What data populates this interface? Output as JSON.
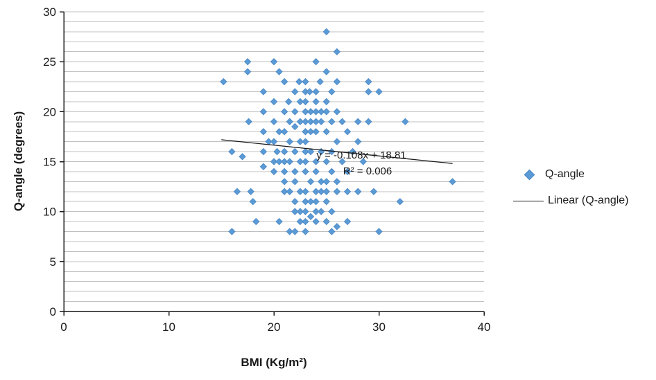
{
  "chart_data": {
    "type": "scatter",
    "title": "",
    "xlabel": "BMI (Kg/m²)",
    "ylabel": "Q-angle (degrees)",
    "xlim": [
      0,
      40
    ],
    "ylim": [
      0,
      30
    ],
    "x_ticks": [
      0,
      10,
      20,
      30,
      40
    ],
    "y_ticks": [
      0,
      5,
      10,
      15,
      20,
      25,
      30
    ],
    "y_minor_grid_step": 1,
    "grid": "horizontal-minor-gridlines",
    "legend_position": "right",
    "series": [
      {
        "name": "Q-angle",
        "marker": "diamond",
        "color": "#5b9bd5",
        "points": [
          [
            15.2,
            23
          ],
          [
            16,
            16
          ],
          [
            16,
            8
          ],
          [
            16.5,
            12
          ],
          [
            17,
            15.5
          ],
          [
            17.5,
            25
          ],
          [
            17.5,
            24
          ],
          [
            17.6,
            19
          ],
          [
            17.8,
            12
          ],
          [
            18,
            11
          ],
          [
            18.3,
            9
          ],
          [
            19,
            22
          ],
          [
            19,
            20
          ],
          [
            19,
            18
          ],
          [
            19,
            16
          ],
          [
            19,
            14.5
          ],
          [
            19.5,
            17
          ],
          [
            20,
            25
          ],
          [
            20,
            21
          ],
          [
            20,
            19
          ],
          [
            20,
            17
          ],
          [
            20,
            15
          ],
          [
            20,
            14
          ],
          [
            20.3,
            16
          ],
          [
            20.5,
            24
          ],
          [
            20.5,
            18
          ],
          [
            20.5,
            15
          ],
          [
            20.5,
            9
          ],
          [
            21,
            23
          ],
          [
            21,
            20
          ],
          [
            21,
            18
          ],
          [
            21,
            16
          ],
          [
            21,
            15
          ],
          [
            21,
            14
          ],
          [
            21,
            13
          ],
          [
            21,
            12
          ],
          [
            21.4,
            21
          ],
          [
            21.5,
            19
          ],
          [
            21.5,
            17
          ],
          [
            21.5,
            15
          ],
          [
            21.5,
            12
          ],
          [
            21.5,
            8
          ],
          [
            22,
            22
          ],
          [
            22,
            20
          ],
          [
            22,
            18.5
          ],
          [
            22,
            16
          ],
          [
            22,
            14
          ],
          [
            22,
            13
          ],
          [
            22,
            11
          ],
          [
            22,
            10
          ],
          [
            22,
            8
          ],
          [
            22.4,
            23
          ],
          [
            22.5,
            21
          ],
          [
            22.5,
            19
          ],
          [
            22.5,
            17
          ],
          [
            22.5,
            15
          ],
          [
            22.5,
            12
          ],
          [
            22.5,
            10
          ],
          [
            22.5,
            9
          ],
          [
            23,
            23
          ],
          [
            23,
            22
          ],
          [
            23,
            21
          ],
          [
            23,
            20
          ],
          [
            23,
            19
          ],
          [
            23,
            18
          ],
          [
            23,
            17
          ],
          [
            23,
            16
          ],
          [
            23,
            15
          ],
          [
            23,
            14
          ],
          [
            23,
            12
          ],
          [
            23,
            11
          ],
          [
            23,
            10
          ],
          [
            23,
            9
          ],
          [
            23,
            8
          ],
          [
            23.4,
            22
          ],
          [
            23.5,
            20
          ],
          [
            23.5,
            19
          ],
          [
            23.5,
            18
          ],
          [
            23.5,
            16
          ],
          [
            23.5,
            13
          ],
          [
            23.5,
            11
          ],
          [
            23.5,
            9.5
          ],
          [
            24,
            25
          ],
          [
            24,
            22
          ],
          [
            24,
            21
          ],
          [
            24,
            20
          ],
          [
            24,
            19
          ],
          [
            24,
            18
          ],
          [
            24,
            15
          ],
          [
            24,
            14
          ],
          [
            24,
            12
          ],
          [
            24,
            11
          ],
          [
            24,
            10
          ],
          [
            24,
            9
          ],
          [
            24.4,
            23
          ],
          [
            24.5,
            20
          ],
          [
            24.5,
            19
          ],
          [
            24.5,
            16
          ],
          [
            24.5,
            13
          ],
          [
            24.5,
            12
          ],
          [
            24.5,
            10
          ],
          [
            25,
            28
          ],
          [
            25,
            24
          ],
          [
            25,
            21
          ],
          [
            25,
            20
          ],
          [
            25,
            18
          ],
          [
            25,
            15
          ],
          [
            25,
            13
          ],
          [
            25,
            12
          ],
          [
            25,
            11
          ],
          [
            25,
            9
          ],
          [
            25.5,
            22
          ],
          [
            25.5,
            19
          ],
          [
            25.5,
            16
          ],
          [
            25.5,
            14
          ],
          [
            25.5,
            10
          ],
          [
            25.5,
            8
          ],
          [
            26,
            26
          ],
          [
            26,
            23
          ],
          [
            26,
            20
          ],
          [
            26,
            17
          ],
          [
            26,
            13
          ],
          [
            26,
            12
          ],
          [
            26,
            8.5
          ],
          [
            26.5,
            19
          ],
          [
            26.5,
            15
          ],
          [
            27,
            18
          ],
          [
            27,
            14
          ],
          [
            27,
            12
          ],
          [
            27,
            9
          ],
          [
            27.5,
            16
          ],
          [
            28,
            19
          ],
          [
            28,
            17
          ],
          [
            28,
            12
          ],
          [
            28.5,
            15
          ],
          [
            29,
            23
          ],
          [
            29,
            22
          ],
          [
            29,
            19
          ],
          [
            29.5,
            12
          ],
          [
            30,
            22
          ],
          [
            30,
            8
          ],
          [
            32,
            11
          ],
          [
            32.5,
            19
          ],
          [
            37,
            13
          ]
        ]
      }
    ],
    "trendline": {
      "name": "Linear (Q-angle)",
      "color": "#1a1a1a",
      "slope": -0.108,
      "intercept": 18.81,
      "x_range": [
        15,
        37
      ],
      "equation": "y = -0.108x + 18.81",
      "r_squared": "R² = 0.006"
    }
  },
  "colors": {
    "marker": "#5b9bd5",
    "marker_border": "#4a86c4",
    "gridline": "#c0c0c0",
    "axis": "#1a1a1a",
    "background": "#ffffff"
  }
}
